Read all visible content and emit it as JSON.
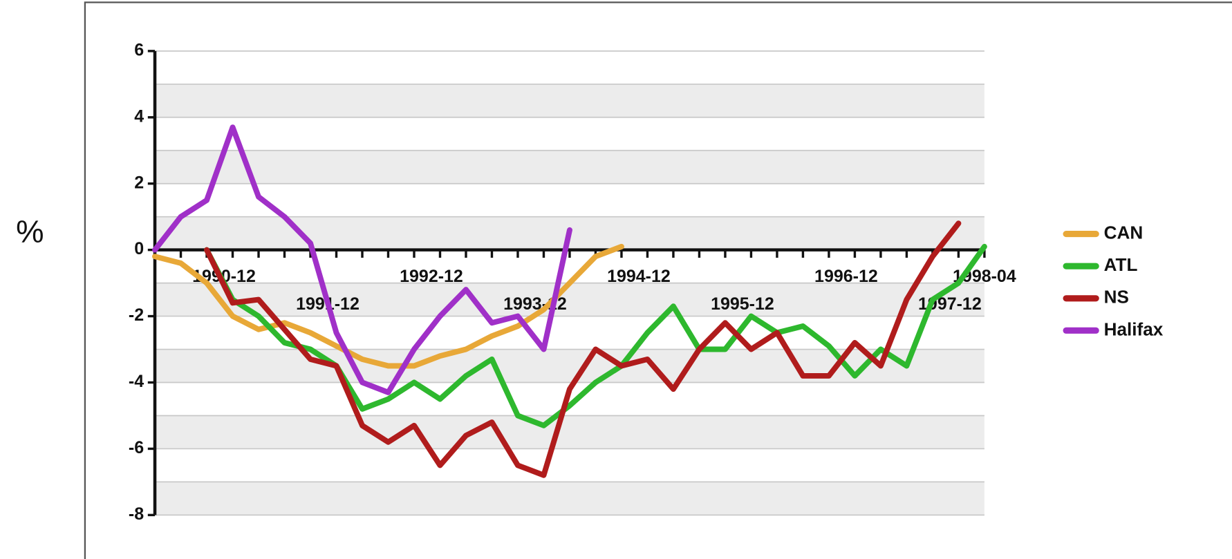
{
  "chart_data": {
    "type": "line",
    "ylabel": "%",
    "x": [
      "1990-04",
      "1990-07",
      "1990-10",
      "1991-01",
      "1991-04",
      "1991-07",
      "1991-10",
      "1992-01",
      "1992-04",
      "1992-07",
      "1992-10",
      "1993-01",
      "1993-04",
      "1993-07",
      "1993-10",
      "1994-01",
      "1994-04",
      "1994-07",
      "1994-10",
      "1995-01",
      "1995-04",
      "1995-07",
      "1995-10",
      "1996-01",
      "1996-04",
      "1996-07",
      "1996-10",
      "1997-01",
      "1997-04",
      "1997-07",
      "1997-10",
      "1998-01",
      "1998-04"
    ],
    "xlim": [
      "1990-04",
      "1998-04"
    ],
    "xticks": [
      "1990-12",
      "1991-12",
      "1992-12",
      "1993-12",
      "1994-12",
      "1995-12",
      "1996-12",
      "1997-12",
      "1998-04"
    ],
    "ylim": [
      -8,
      6
    ],
    "yticks": [
      -8,
      -6,
      -4,
      -2,
      0,
      2,
      4,
      6
    ],
    "grid": true,
    "legend": "right",
    "series": [
      {
        "name": "CAN",
        "color": "#e8a838",
        "values": [
          -0.2,
          -0.4,
          -1.0,
          -2.0,
          -2.4,
          -2.2,
          -2.5,
          -2.9,
          -3.3,
          -3.5,
          -3.5,
          -3.2,
          -3.0,
          -2.6,
          -2.3,
          -1.8,
          -1.0,
          -0.2,
          0.1,
          null,
          null,
          null,
          null,
          null,
          null,
          null,
          null,
          null,
          null,
          null,
          null,
          null,
          null
        ]
      },
      {
        "name": "ATL",
        "color": "#2eb82e",
        "values": [
          null,
          null,
          0,
          -1.5,
          -2.0,
          -2.8,
          -3.0,
          -3.5,
          -4.8,
          -4.5,
          -4.0,
          -4.5,
          -3.8,
          -3.3,
          -5.0,
          -5.3,
          -4.7,
          -4.0,
          -3.5,
          -2.5,
          -1.7,
          -3.0,
          -3.0,
          -2.0,
          -2.5,
          -2.3,
          -2.9,
          -3.8,
          -3.0,
          -3.5,
          -1.5,
          -1.0,
          0.1
        ]
      },
      {
        "name": "NS",
        "color": "#b01c1c",
        "values": [
          null,
          null,
          0,
          -1.6,
          -1.5,
          -2.4,
          -3.3,
          -3.5,
          -5.3,
          -5.8,
          -5.3,
          -6.5,
          -5.6,
          -5.2,
          -6.5,
          -6.8,
          -4.2,
          -3.0,
          -3.5,
          -3.3,
          -4.2,
          -3.0,
          -2.2,
          -3.0,
          -2.5,
          -3.8,
          -3.8,
          -2.8,
          -3.5,
          -1.5,
          -0.2,
          0.8,
          null
        ]
      },
      {
        "name": "Halifax",
        "color": "#a030c8",
        "values": [
          0,
          1.0,
          1.5,
          3.7,
          1.6,
          1.0,
          0.2,
          -2.5,
          -4.0,
          -4.3,
          -3.0,
          -2.0,
          -1.2,
          -2.2,
          -2.0,
          -3.0,
          0.6,
          null,
          null,
          null,
          null,
          null,
          null,
          null,
          null,
          null,
          null,
          null,
          null,
          null,
          null,
          null,
          null
        ]
      }
    ]
  }
}
